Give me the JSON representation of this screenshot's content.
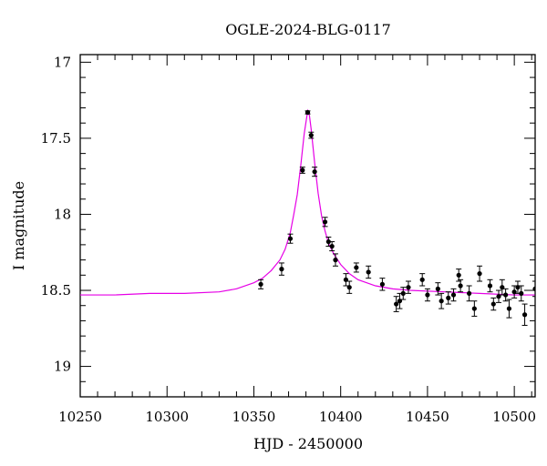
{
  "chart_data": {
    "type": "scatter",
    "title": "OGLE-2024-BLG-0117",
    "xlabel": "HJD - 2450000",
    "ylabel": "I magnitude",
    "xlim": [
      10250,
      10512
    ],
    "ylim": [
      19.2,
      16.95
    ],
    "y_inverted": true,
    "grid": false,
    "x_ticks": [
      10250,
      10300,
      10350,
      10400,
      10450,
      10500
    ],
    "y_ticks": [
      17,
      17.5,
      18,
      18.5,
      19
    ],
    "colors": {
      "data": "#000000",
      "model": "#e600e6",
      "axes": "#000000"
    },
    "series": [
      {
        "kind": "points_with_errorbars",
        "x": [
          10354,
          10366,
          10371,
          10378,
          10381,
          10383,
          10385,
          10391,
          10393,
          10395,
          10397,
          10403,
          10405,
          10409,
          10416,
          10424,
          10432,
          10434,
          10436,
          10439,
          10447,
          10450,
          10456,
          10458,
          10462,
          10465,
          10468,
          10469,
          10474,
          10477,
          10480,
          10486,
          10488,
          10491,
          10493,
          10495,
          10497,
          10500,
          10502,
          10504,
          10506,
          10512
        ],
        "y": [
          18.46,
          18.36,
          18.16,
          17.71,
          17.33,
          17.48,
          17.72,
          18.05,
          18.18,
          18.21,
          18.3,
          18.43,
          18.48,
          18.35,
          18.38,
          18.46,
          18.59,
          18.57,
          18.52,
          18.48,
          18.43,
          18.53,
          18.49,
          18.57,
          18.55,
          18.53,
          18.4,
          18.47,
          18.52,
          18.62,
          18.39,
          18.47,
          18.59,
          18.54,
          18.48,
          18.53,
          18.62,
          18.51,
          18.48,
          18.52,
          18.66,
          18.49
        ],
        "err": [
          0.03,
          0.04,
          0.03,
          0.02,
          0.01,
          0.02,
          0.03,
          0.03,
          0.03,
          0.03,
          0.04,
          0.04,
          0.04,
          0.03,
          0.04,
          0.04,
          0.05,
          0.05,
          0.04,
          0.04,
          0.04,
          0.04,
          0.04,
          0.05,
          0.04,
          0.04,
          0.04,
          0.04,
          0.05,
          0.05,
          0.05,
          0.04,
          0.04,
          0.04,
          0.05,
          0.04,
          0.06,
          0.04,
          0.04,
          0.05,
          0.07,
          0.05
        ]
      },
      {
        "kind": "model_curve",
        "x": [
          10250,
          10270,
          10290,
          10310,
          10330,
          10340,
          10350,
          10355,
          10360,
          10365,
          10368,
          10371,
          10373,
          10375,
          10377,
          10379,
          10381,
          10382,
          10383,
          10385,
          10387,
          10389,
          10391,
          10393,
          10396,
          10400,
          10405,
          10410,
          10420,
          10430,
          10440,
          10460,
          10480,
          10500,
          10512
        ],
        "y": [
          18.53,
          18.53,
          18.52,
          18.52,
          18.51,
          18.49,
          18.45,
          18.42,
          18.37,
          18.3,
          18.23,
          18.12,
          18.0,
          17.87,
          17.68,
          17.47,
          17.32,
          17.35,
          17.44,
          17.66,
          17.86,
          18.01,
          18.11,
          18.19,
          18.26,
          18.33,
          18.39,
          18.43,
          18.47,
          18.49,
          18.5,
          18.51,
          18.52,
          18.53,
          18.53
        ]
      }
    ]
  }
}
